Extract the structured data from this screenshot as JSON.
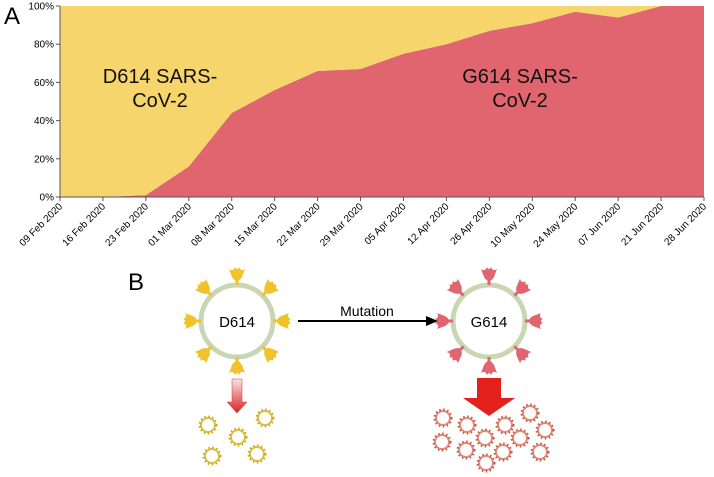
{
  "panels": {
    "a": "A",
    "b": "B"
  },
  "chart_data": {
    "type": "area",
    "stacked": true,
    "categories": [
      "09 Feb 2020",
      "16 Feb 2020",
      "23 Feb 2020",
      "01 Mar 2020",
      "08 Mar 2020",
      "15 Mar 2020",
      "22 Mar 2020",
      "29 Mar 2020",
      "05 Apr 2020",
      "12 Apr 2020",
      "26 Apr 2020",
      "10 May 2020",
      "24 May 2020",
      "07 Jun 2020",
      "21 Jun 2020",
      "28 Jun 2020"
    ],
    "series": [
      {
        "name": "G614 SARS-CoV-2",
        "color": "#e0656f",
        "values": [
          0,
          0,
          1,
          16,
          44,
          56,
          66,
          67,
          75,
          80,
          87,
          91,
          97,
          94,
          100,
          100
        ]
      },
      {
        "name": "D614 SARS-CoV-2",
        "color": "#f6d56d",
        "values": [
          100,
          100,
          99,
          84,
          56,
          44,
          34,
          33,
          25,
          20,
          13,
          9,
          3,
          6,
          0,
          0
        ]
      }
    ],
    "ylim": [
      0,
      100
    ],
    "yticks": [
      {
        "value": 0,
        "label": "0%"
      },
      {
        "value": 20,
        "label": "20%"
      },
      {
        "value": 40,
        "label": "40%"
      },
      {
        "value": 60,
        "label": "60%"
      },
      {
        "value": 80,
        "label": "80%"
      },
      {
        "value": 100,
        "label": "100%"
      }
    ]
  },
  "diagram": {
    "before": "D614",
    "arrow": "Mutation",
    "after": "G614"
  }
}
